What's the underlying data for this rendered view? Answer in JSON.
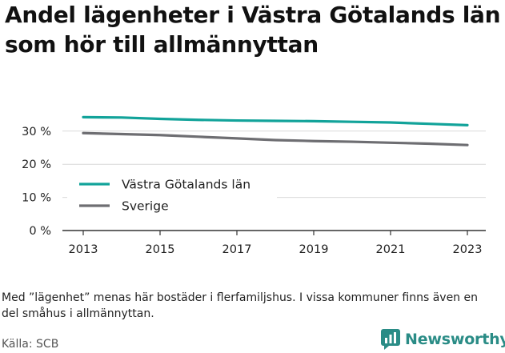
{
  "title": "Andel lägenheter i Västra Götalands län som hör till allmännyttan",
  "note": "Med ”lägenhet” menas här bostäder i flerfamiljshus. I vissa kommuner finns även en del småhus i allmännyttan.",
  "source": "Källa: SCB",
  "brand": {
    "name": "Newsworthy",
    "icon": "newsworthy-logo-icon",
    "color": "#2a8c86"
  },
  "chart_data": {
    "type": "line",
    "title": "Andel lägenheter i Västra Götalands län som hör till allmännyttan",
    "xlabel": "",
    "ylabel": "",
    "x": [
      2013,
      2014,
      2015,
      2016,
      2017,
      2018,
      2019,
      2020,
      2021,
      2022,
      2023
    ],
    "xticks": [
      "2013",
      "2015",
      "2017",
      "2019",
      "2021",
      "2023"
    ],
    "yticks": [
      "0 %",
      "10 %",
      "20 %",
      "30 %"
    ],
    "ylim": [
      0,
      35
    ],
    "grid": "horizontal",
    "legend_position": "lower-left",
    "series": [
      {
        "name": "Västra Götalands län",
        "color": "#12a39a",
        "values": [
          34.2,
          34.1,
          33.7,
          33.4,
          33.2,
          33.1,
          33.0,
          32.8,
          32.6,
          32.2,
          31.8
        ]
      },
      {
        "name": "Sverige",
        "color": "#6e6e72",
        "values": [
          29.4,
          29.1,
          28.8,
          28.3,
          27.8,
          27.3,
          27.0,
          26.8,
          26.5,
          26.2,
          25.8
        ]
      }
    ]
  }
}
